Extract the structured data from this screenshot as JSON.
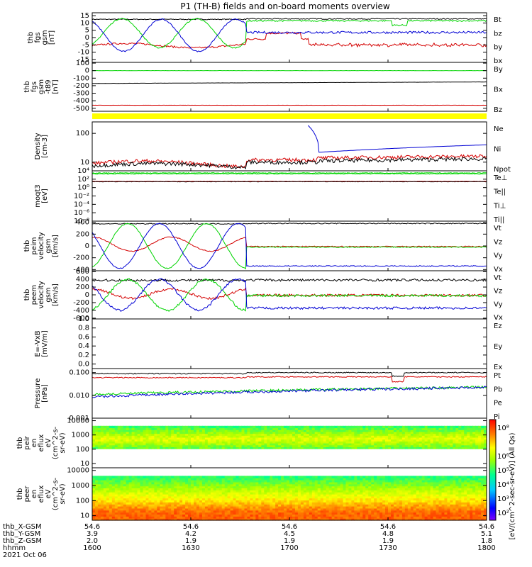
{
  "title": "P1 (TH-B) fields and on-board moments overview",
  "colors": {
    "black": "#000000",
    "red": "#d40000",
    "green": "#00d400",
    "blue": "#0000d4",
    "yellow": "#ffff00",
    "frame": "#000000"
  },
  "chart_data": {
    "type": "line",
    "time_range": [
      "16:00",
      "18:00"
    ],
    "panels": [
      {
        "id": "fgs_gsm",
        "ylabel": [
          "thb",
          "fgs",
          "gsm",
          "[nT]"
        ],
        "ylim": [
          -17,
          17
        ],
        "yticks": [
          -15,
          -10,
          -5,
          0,
          5,
          10,
          15
        ],
        "scale": "linear",
        "series": [
          {
            "name": "Bt",
            "color": "black"
          },
          {
            "name": "bz",
            "color": "red"
          },
          {
            "name": "by",
            "color": "green"
          },
          {
            "name": "bx",
            "color": "blue"
          }
        ]
      },
      {
        "id": "fgs_gsm_model",
        "ylabel": [
          "thb",
          "fgs",
          "gsm",
          "-t89",
          "[nT]"
        ],
        "ylim": [
          -540,
          110
        ],
        "yticks": [
          -500,
          -400,
          -300,
          -200,
          -100,
          0,
          100
        ],
        "scale": "linear",
        "series": [
          {
            "name": "By",
            "color": "green"
          },
          {
            "name": "Bx",
            "color": "black"
          },
          {
            "name": "Bz",
            "color": "red"
          }
        ]
      },
      {
        "id": "density",
        "ylabel": [
          "Density",
          "[cm-3]"
        ],
        "ylim": [
          5,
          250
        ],
        "yticks": [
          10,
          100
        ],
        "scale": "log",
        "series": [
          {
            "name": "Ne",
            "color": "red"
          },
          {
            "name": "Ni",
            "color": "black"
          },
          {
            "name": "Npot",
            "color": "blue"
          }
        ]
      },
      {
        "id": "temperature",
        "ylabel": [
          "moqt3",
          "[eV]"
        ],
        "ylim": [
          1e-08,
          10000
        ],
        "yticks": [
          10000,
          100,
          1,
          0.01,
          0.0001,
          1e-06,
          1e-08
        ],
        "ytick_labels": [
          "10⁴",
          "10²",
          "10⁰",
          "10⁻²",
          "10⁻⁴",
          "10⁻⁶",
          "10⁻⁸"
        ],
        "scale": "log",
        "series": [
          {
            "name": "Te⊥",
            "color": "red"
          },
          {
            "name": "Te||",
            "color": "black"
          },
          {
            "name": "Ti⊥",
            "color": "green"
          },
          {
            "name": "Ti||",
            "color": "green"
          }
        ]
      },
      {
        "id": "peim_velocity",
        "ylabel": [
          "thb",
          "peim",
          "velocity",
          "gsm",
          "[km/s]"
        ],
        "ylim": [
          -420,
          420
        ],
        "yticks": [
          -400,
          -200,
          0,
          200,
          400
        ],
        "scale": "linear",
        "series": [
          {
            "name": "Vt",
            "color": "black"
          },
          {
            "name": "Vz",
            "color": "red"
          },
          {
            "name": "Vy",
            "color": "green"
          },
          {
            "name": "Vx",
            "color": "blue"
          }
        ]
      },
      {
        "id": "peem_velocity",
        "ylabel": [
          "thb",
          "peem",
          "velocity",
          "gsm",
          "[km/s]"
        ],
        "ylim": [
          -620,
          620
        ],
        "yticks": [
          -600,
          -400,
          -200,
          0,
          200,
          400,
          600
        ],
        "scale": "linear",
        "series": [
          {
            "name": "Vt",
            "color": "black"
          },
          {
            "name": "Vz",
            "color": "red"
          },
          {
            "name": "Vy",
            "color": "green"
          },
          {
            "name": "Vx",
            "color": "blue"
          }
        ]
      },
      {
        "id": "efield",
        "ylabel": [
          "E=-VxB",
          "[mV/m]"
        ],
        "ylim": [
          -0.1,
          1.0
        ],
        "yticks": [
          0.0,
          0.2,
          0.4,
          0.6,
          0.8,
          1.0
        ],
        "ytick_labels": [
          "0.0",
          "0.2",
          "0.4",
          "0.6",
          "0.8",
          "1.0"
        ],
        "scale": "linear",
        "series": [
          {
            "name": "Ez",
            "color": "red"
          },
          {
            "name": "Ey",
            "color": "green"
          },
          {
            "name": "Ex",
            "color": "blue"
          }
        ]
      },
      {
        "id": "pressure",
        "ylabel": [
          "Pressure",
          "[nPa]"
        ],
        "ylim": [
          0.001,
          0.15
        ],
        "yticks": [
          0.001,
          0.01,
          0.1
        ],
        "ytick_labels": [
          "0.001",
          "0.010",
          "0.100"
        ],
        "scale": "log",
        "series": [
          {
            "name": "Pt",
            "color": "black"
          },
          {
            "name": "Pb",
            "color": "red"
          },
          {
            "name": "Pe",
            "color": "green"
          },
          {
            "name": "Pi",
            "color": "blue"
          }
        ]
      },
      {
        "id": "peir_spectrogram",
        "ylabel": [
          "thb",
          "peir",
          "en",
          "eflux",
          "eV",
          "(cm^2-s-",
          "sr-eV)"
        ],
        "ylim": [
          5,
          15000
        ],
        "yticks": [
          10,
          100,
          1000,
          10000
        ],
        "scale": "log",
        "kind": "heatmap"
      },
      {
        "id": "peer_spectrogram",
        "ylabel": [
          "thb",
          "peer",
          "en",
          "eflux",
          "eV",
          "(cm^2-s-",
          "sr-eV)"
        ],
        "ylim": [
          5,
          15000
        ],
        "yticks": [
          10,
          100,
          1000,
          10000
        ],
        "scale": "log",
        "kind": "heatmap"
      }
    ],
    "colorbar": {
      "label": "[eV/(cm^2-sec-sr-eV)] (All Qs)",
      "tick_labels": [
        "10²",
        "10³",
        "10⁴",
        "10⁵",
        "10⁶",
        "10⁸"
      ],
      "ticks": [
        2,
        3,
        4,
        5,
        6,
        8
      ],
      "range_log": [
        1.5,
        8.6
      ]
    },
    "xaxis": {
      "row_labels": [
        "thb_X-GSM",
        "thb_Y-GSM",
        "thb_Z-GSM",
        "hhmm",
        "2021 Oct 06"
      ],
      "columns": [
        {
          "x": "54.6",
          "y": "3.9",
          "z": "2.0",
          "hhmm": "1600"
        },
        {
          "x": "54.6",
          "y": "4.2",
          "z": "1.9",
          "hhmm": "1630"
        },
        {
          "x": "54.6",
          "y": "4.5",
          "z": "1.9",
          "hhmm": "1700"
        },
        {
          "x": "54.6",
          "y": "4.8",
          "z": "1.9",
          "hhmm": "1730"
        },
        {
          "x": "54.6",
          "y": "5.1",
          "z": "1.8",
          "hhmm": "1800"
        }
      ]
    }
  }
}
